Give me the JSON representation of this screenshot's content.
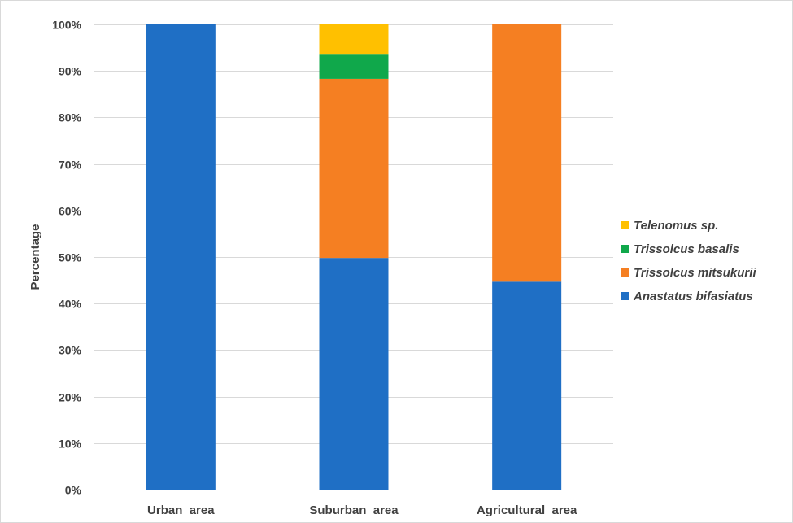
{
  "chart_data": {
    "type": "bar",
    "stacked": true,
    "categories": [
      "Urban  area",
      "Suburban  area",
      "Agricultural  area"
    ],
    "series": [
      {
        "name": "Anastatus bifasiatus",
        "color": "#1f6fc5",
        "values": [
          100,
          49.8,
          44.7
        ]
      },
      {
        "name": "Trissolcus mitsukurii",
        "color": "#f57f22",
        "values": [
          0,
          38.5,
          55.3
        ]
      },
      {
        "name": "Trissolcus basalis",
        "color": "#10a84b",
        "values": [
          0,
          5.2,
          0
        ]
      },
      {
        "name": "Telenomus sp.",
        "color": "#ffc000",
        "values": [
          0,
          6.5,
          0
        ]
      }
    ],
    "ylabel": "Percentage",
    "xlabel": "",
    "ylim": [
      0,
      100
    ],
    "yticks": [
      "0%",
      "10%",
      "20%",
      "30%",
      "40%",
      "50%",
      "60%",
      "70%",
      "80%",
      "90%",
      "100%"
    ],
    "grid": true,
    "legend_position": "right"
  }
}
